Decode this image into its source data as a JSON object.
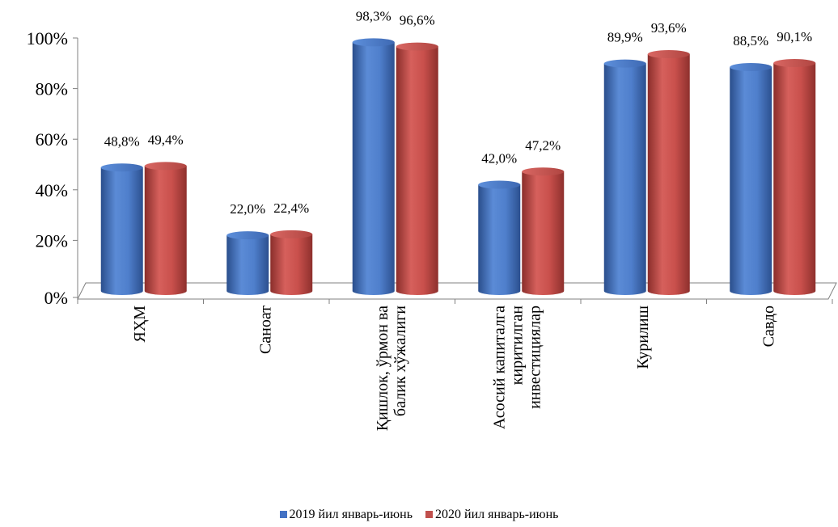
{
  "chart_data": {
    "type": "bar",
    "categories": [
      [
        "ЯҲМ"
      ],
      [
        "Саноат"
      ],
      [
        "Қишлок, ўрмон ва",
        "балик хўжалиги"
      ],
      [
        "Асосий капиталга",
        "киритилган",
        "инвестициялар"
      ],
      [
        "Курилиш"
      ],
      [
        "Савдо"
      ]
    ],
    "series": [
      {
        "name": "2019 йил январь-июнь",
        "color": "#4472C4",
        "values": [
          48.8,
          22.0,
          98.3,
          42.0,
          89.9,
          88.5
        ],
        "labels": [
          "48,8%",
          "22,0%",
          "98,3%",
          "42,0%",
          "89,9%",
          "88,5%"
        ]
      },
      {
        "name": "2020 йил январь-июнь",
        "color": "#C0504D",
        "values": [
          49.4,
          22.4,
          96.6,
          47.2,
          93.6,
          90.1
        ],
        "labels": [
          "49,4%",
          "22,4%",
          "96,6%",
          "47,2%",
          "93,6%",
          "90,1%"
        ]
      }
    ],
    "yticks": [
      "0%",
      "20%",
      "40%",
      "60%",
      "80%",
      "100%"
    ],
    "ylim": [
      0,
      100
    ],
    "legend_position": "bottom",
    "grid": false
  }
}
